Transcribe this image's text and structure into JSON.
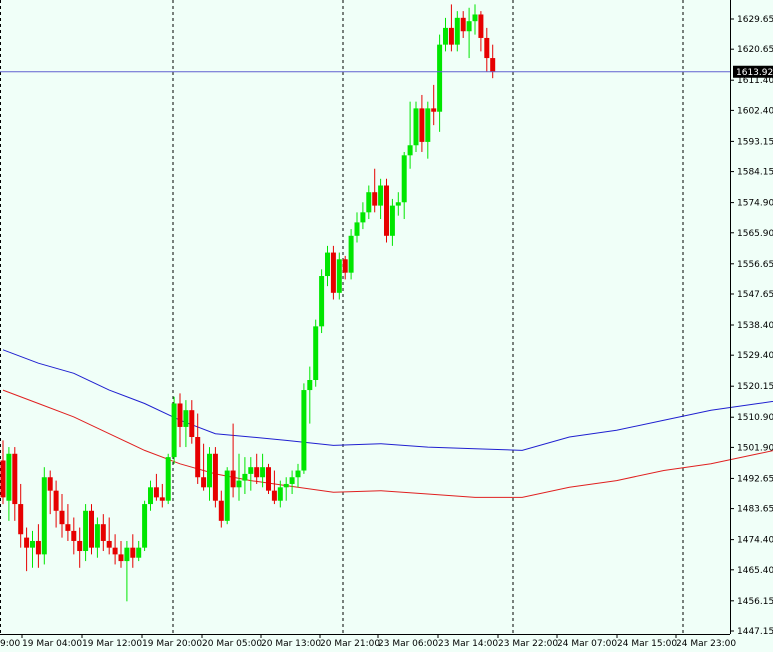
{
  "chart_data": {
    "type": "candlestick",
    "instrument_price_label": "1613.92",
    "current_price": 1613.92,
    "y_ticks": [
      1629.65,
      1620.65,
      1611.4,
      1602.4,
      1593.15,
      1584.15,
      1574.9,
      1565.9,
      1556.65,
      1547.65,
      1538.4,
      1529.4,
      1520.15,
      1510.9,
      1501.9,
      1492.65,
      1483.65,
      1474.4,
      1465.4,
      1456.15,
      1447.15
    ],
    "ylim": [
      1447.15,
      1632.7
    ],
    "x_ticks": [
      "19 Mar 04:00",
      "19 Mar 12:00",
      "19 Mar 20:00",
      "20 Mar 05:00",
      "20 Mar 13:00",
      "20 Mar 21:00",
      "23 Mar 06:00",
      "23 Mar 14:00",
      "23 Mar 22:00",
      "24 Mar 07:00",
      "24 Mar 15:00",
      "24 Mar 23:00"
    ],
    "x_tick_partial": "9:00",
    "colors": {
      "background": "#f0fff8",
      "bull": "#00e600",
      "bear": "#e60000",
      "ma_fast": "#e02020",
      "ma_slow": "#2020d0",
      "grid": "#000000",
      "price_line": "#6060d0",
      "price_tag": "#000000",
      "axis": "#000000"
    },
    "candles": [
      [
        1498,
        1504,
        1485,
        1487
      ],
      [
        1486,
        1502,
        1480,
        1500
      ],
      [
        1500,
        1502,
        1480,
        1485
      ],
      [
        1485,
        1491,
        1472,
        1476
      ],
      [
        1475,
        1478,
        1465,
        1472
      ],
      [
        1472,
        1477,
        1466,
        1474
      ],
      [
        1474,
        1479,
        1466,
        1470
      ],
      [
        1470,
        1496,
        1467,
        1493
      ],
      [
        1493,
        1495,
        1482,
        1489
      ],
      [
        1489,
        1492,
        1478,
        1483
      ],
      [
        1483,
        1488,
        1475,
        1479
      ],
      [
        1479,
        1485,
        1474,
        1477
      ],
      [
        1477,
        1481,
        1470,
        1474
      ],
      [
        1474,
        1478,
        1466,
        1471
      ],
      [
        1471,
        1485,
        1468,
        1483
      ],
      [
        1483,
        1485,
        1470,
        1472
      ],
      [
        1472,
        1481,
        1469,
        1479
      ],
      [
        1479,
        1482,
        1471,
        1474
      ],
      [
        1474,
        1481,
        1470,
        1472
      ],
      [
        1472,
        1476,
        1467,
        1470
      ],
      [
        1470,
        1474,
        1466,
        1468
      ],
      [
        1468,
        1474,
        1456,
        1472
      ],
      [
        1472,
        1476,
        1466,
        1469
      ],
      [
        1469,
        1474,
        1468,
        1472
      ],
      [
        1472,
        1486,
        1471,
        1485
      ],
      [
        1485,
        1492,
        1483,
        1490
      ],
      [
        1490,
        1494,
        1486,
        1487
      ],
      [
        1487,
        1491,
        1484,
        1486
      ],
      [
        1486,
        1500,
        1485,
        1499
      ],
      [
        1499,
        1517,
        1497,
        1515
      ],
      [
        1515,
        1518,
        1502,
        1508
      ],
      [
        1508,
        1516,
        1502,
        1513
      ],
      [
        1513,
        1516,
        1503,
        1505
      ],
      [
        1505,
        1512,
        1491,
        1493
      ],
      [
        1493,
        1503,
        1489,
        1490
      ],
      [
        1490,
        1502,
        1486,
        1500
      ],
      [
        1500,
        1502,
        1484,
        1486
      ],
      [
        1486,
        1489,
        1478,
        1480
      ],
      [
        1480,
        1496,
        1479,
        1495
      ],
      [
        1495,
        1509,
        1487,
        1490
      ],
      [
        1490,
        1500,
        1486,
        1492
      ],
      [
        1492,
        1499,
        1488,
        1494
      ],
      [
        1494,
        1499,
        1489,
        1496
      ],
      [
        1496,
        1500,
        1491,
        1493
      ],
      [
        1493,
        1500,
        1490,
        1496
      ],
      [
        1496,
        1497,
        1488,
        1489
      ],
      [
        1489,
        1495,
        1485,
        1486
      ],
      [
        1486,
        1492,
        1484,
        1490
      ],
      [
        1490,
        1493,
        1486,
        1491
      ],
      [
        1491,
        1495,
        1488,
        1493
      ],
      [
        1493,
        1497,
        1490,
        1495
      ],
      [
        1495,
        1521,
        1494,
        1519
      ],
      [
        1519,
        1526,
        1509,
        1522
      ],
      [
        1522,
        1540,
        1520,
        1538
      ],
      [
        1538,
        1555,
        1536,
        1553
      ],
      [
        1553,
        1562,
        1550,
        1560
      ],
      [
        1560,
        1562,
        1546,
        1548
      ],
      [
        1548,
        1560,
        1546,
        1558
      ],
      [
        1558,
        1559,
        1552,
        1554
      ],
      [
        1554,
        1567,
        1552,
        1565
      ],
      [
        1565,
        1572,
        1563,
        1569
      ],
      [
        1569,
        1575,
        1567,
        1572
      ],
      [
        1572,
        1580,
        1570,
        1578
      ],
      [
        1578,
        1585,
        1572,
        1574
      ],
      [
        1574,
        1582,
        1570,
        1580
      ],
      [
        1580,
        1582,
        1563,
        1565
      ],
      [
        1565,
        1576,
        1562,
        1574
      ],
      [
        1574,
        1578,
        1571,
        1575
      ],
      [
        1575,
        1590,
        1570,
        1589
      ],
      [
        1589,
        1605,
        1585,
        1592
      ],
      [
        1592,
        1605,
        1590,
        1603
      ],
      [
        1603,
        1607,
        1590,
        1593
      ],
      [
        1593,
        1605,
        1588,
        1603
      ],
      [
        1603,
        1610,
        1598,
        1602
      ],
      [
        1602,
        1625,
        1596,
        1622
      ],
      [
        1622,
        1630,
        1620,
        1627
      ],
      [
        1627,
        1634,
        1620,
        1622
      ],
      [
        1622,
        1632,
        1620,
        1630
      ],
      [
        1630,
        1632,
        1624,
        1626
      ],
      [
        1626,
        1633,
        1618,
        1629
      ],
      [
        1629,
        1634,
        1625,
        1631
      ],
      [
        1631,
        1632,
        1620,
        1624
      ],
      [
        1624,
        1627,
        1614,
        1618
      ],
      [
        1618,
        1622,
        1612,
        1614
      ]
    ],
    "ma_slow": [
      [
        0,
        1531
      ],
      [
        6,
        1527
      ],
      [
        12,
        1524
      ],
      [
        18,
        1519
      ],
      [
        24,
        1515
      ],
      [
        30,
        1510
      ],
      [
        36,
        1506
      ],
      [
        42,
        1505
      ],
      [
        48,
        1504
      ],
      [
        56,
        1502.5
      ],
      [
        64,
        1503
      ],
      [
        72,
        1502
      ],
      [
        80,
        1501.5
      ],
      [
        88,
        1501
      ],
      [
        96,
        1505
      ],
      [
        104,
        1507
      ],
      [
        112,
        1510
      ],
      [
        120,
        1513
      ],
      [
        128,
        1515
      ],
      [
        136,
        1517
      ],
      [
        144,
        1519
      ],
      [
        152,
        1522
      ],
      [
        160,
        1523
      ],
      [
        168,
        1525.5
      ],
      [
        174,
        1531
      ]
    ],
    "ma_fast": [
      [
        0,
        1519
      ],
      [
        6,
        1515
      ],
      [
        12,
        1511
      ],
      [
        18,
        1506
      ],
      [
        24,
        1501
      ],
      [
        30,
        1497
      ],
      [
        36,
        1494
      ],
      [
        42,
        1492
      ],
      [
        48,
        1490.5
      ],
      [
        56,
        1488.5
      ],
      [
        64,
        1489
      ],
      [
        72,
        1488
      ],
      [
        80,
        1487
      ],
      [
        88,
        1487
      ],
      [
        96,
        1490
      ],
      [
        104,
        1492
      ],
      [
        112,
        1495
      ],
      [
        120,
        1497
      ],
      [
        128,
        1500
      ],
      [
        136,
        1503
      ],
      [
        144,
        1507
      ],
      [
        152,
        1510
      ],
      [
        160,
        1513
      ],
      [
        168,
        1516
      ],
      [
        174,
        1520
      ]
    ]
  }
}
